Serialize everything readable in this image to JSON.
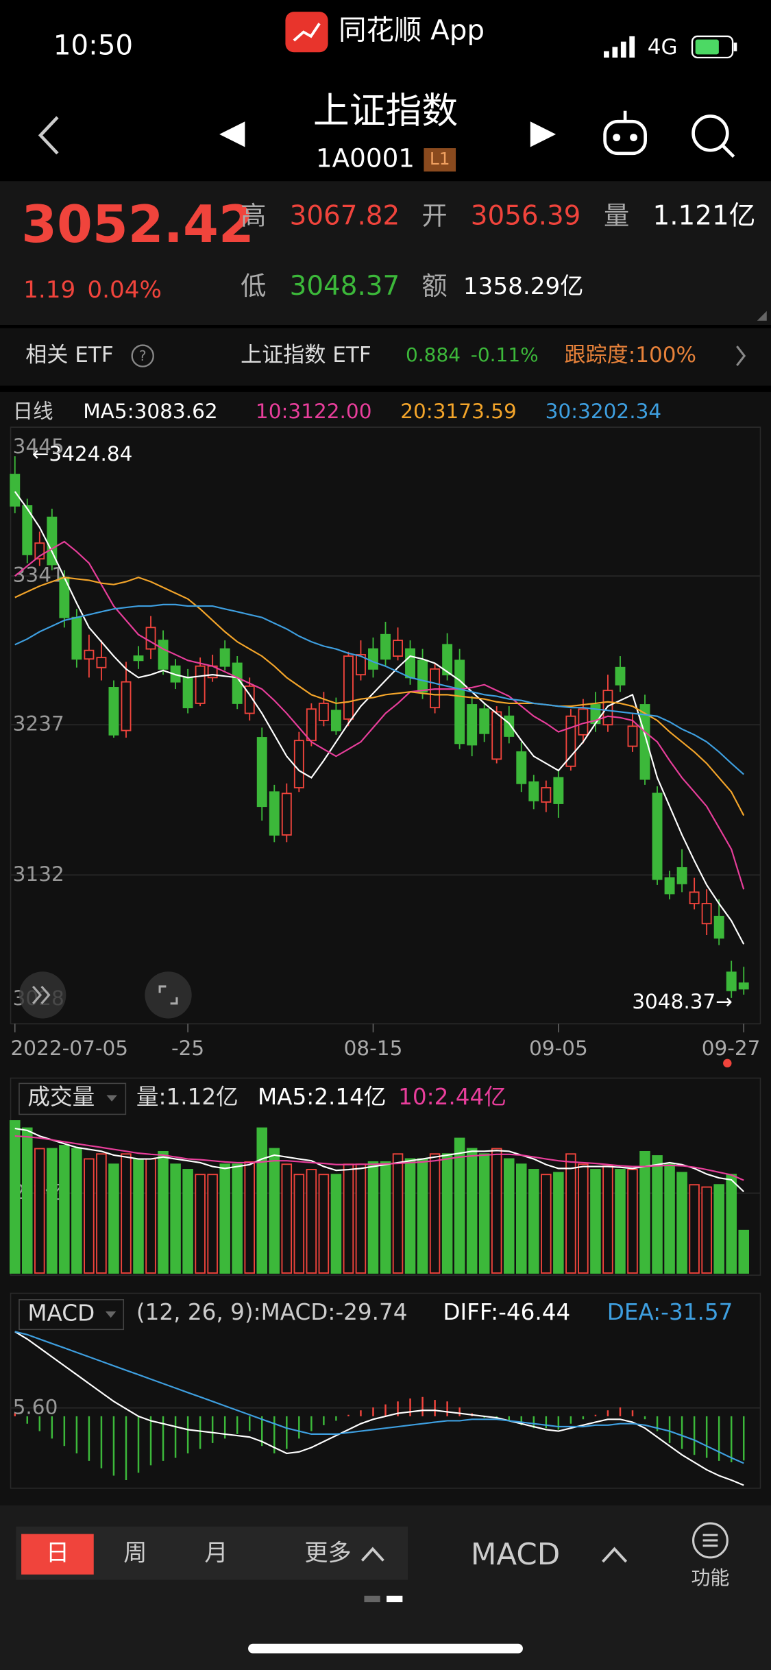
{
  "status_bar": {
    "time": "10:50",
    "app": "同花顺 App",
    "network": "4G"
  },
  "header": {
    "title": "上证指数",
    "code": "1A0001",
    "badge": "L1"
  },
  "quote": {
    "price": "3052.42",
    "change": "1.19",
    "change_pct": "0.04%",
    "high_label": "高",
    "high": "3067.82",
    "open_label": "开",
    "open": "3056.39",
    "volume_label": "量",
    "volume": "1.121亿",
    "low_label": "低",
    "low": "3048.37",
    "amount_label": "额",
    "amount": "1358.29亿"
  },
  "etf": {
    "label": "相关 ETF",
    "name": "上证指数 ETF",
    "price": "0.884",
    "change_pct": "-0.11%",
    "tracking": "跟踪度:100%"
  },
  "chart_data": [
    {
      "type": "candlestick",
      "legend_title": "日线",
      "categories": [
        "2022-07-05",
        null,
        null,
        null,
        null,
        null,
        null,
        null,
        null,
        null,
        null,
        null,
        null,
        null,
        "-25",
        null,
        null,
        null,
        null,
        null,
        null,
        null,
        null,
        null,
        null,
        null,
        null,
        null,
        null,
        "08-15",
        null,
        null,
        null,
        null,
        null,
        null,
        null,
        null,
        null,
        null,
        null,
        null,
        null,
        null,
        "09-05",
        null,
        null,
        null,
        null,
        null,
        null,
        null,
        null,
        null,
        null,
        null,
        null,
        null,
        null,
        "09-27"
      ],
      "open": [
        3412,
        3390,
        3353,
        3382,
        3340,
        3312,
        3283,
        3277,
        3263,
        3233,
        3285,
        3290,
        3296,
        3278,
        3270,
        3252,
        3270,
        3290,
        3280,
        3245,
        3228,
        3190,
        3160,
        3193,
        3226,
        3240,
        3247,
        3241,
        3272,
        3290,
        3300,
        3285,
        3290,
        3282,
        3249,
        3293,
        3282,
        3251,
        3248,
        3213,
        3243,
        3218,
        3197,
        3183,
        3200,
        3208,
        3230,
        3251,
        3237,
        3277,
        3222,
        3251,
        3189,
        3130,
        3137,
        3112,
        3098,
        3103,
        3064,
        3056.39
      ],
      "high": [
        3424.84,
        3395,
        3372,
        3388,
        3345,
        3318,
        3300,
        3296,
        3268,
        3281,
        3292,
        3313,
        3303,
        3283,
        3276,
        3284,
        3286,
        3296,
        3285,
        3270,
        3235,
        3195,
        3196,
        3232,
        3252,
        3260,
        3256,
        3288,
        3296,
        3298,
        3309,
        3305,
        3296,
        3290,
        3280,
        3301,
        3290,
        3257,
        3252,
        3250,
        3250,
        3225,
        3202,
        3198,
        3205,
        3248,
        3255,
        3260,
        3272,
        3285,
        3245,
        3258,
        3194,
        3135,
        3150,
        3130,
        3122,
        3115,
        3072,
        3067.82
      ],
      "low": [
        3385,
        3350,
        3348,
        3345,
        3305,
        3277,
        3270,
        3268,
        3228,
        3228,
        3276,
        3283,
        3272,
        3262,
        3245,
        3250,
        3267,
        3275,
        3248,
        3240,
        3170,
        3155,
        3155,
        3190,
        3222,
        3236,
        3230,
        3236,
        3268,
        3270,
        3278,
        3282,
        3265,
        3255,
        3245,
        3268,
        3220,
        3215,
        3225,
        3210,
        3224,
        3190,
        3178,
        3176,
        3172,
        3205,
        3224,
        3232,
        3232,
        3260,
        3218,
        3195,
        3125,
        3115,
        3120,
        3108,
        3090,
        3083,
        3046,
        3048.37
      ],
      "close": [
        3390,
        3356,
        3364,
        3349,
        3312,
        3283,
        3289,
        3284,
        3230,
        3267,
        3282,
        3305,
        3276,
        3267,
        3249,
        3278,
        3278,
        3278,
        3252,
        3264,
        3180,
        3160,
        3189,
        3226,
        3248,
        3252,
        3233,
        3285,
        3286,
        3276,
        3283,
        3296,
        3270,
        3260,
        3276,
        3272,
        3224,
        3223,
        3231,
        3246,
        3229,
        3196,
        3184,
        3193,
        3182,
        3243,
        3248,
        3238,
        3261,
        3265,
        3236,
        3199,
        3129,
        3119,
        3126,
        3120,
        3112,
        3088,
        3051.23,
        3052.42
      ],
      "up_color": "#f0443c",
      "down_color": "#3cb83a",
      "ylim": [
        3028,
        3445
      ],
      "yticks": [
        3445,
        3341,
        3237,
        3132,
        3028
      ],
      "grid": true,
      "annotations": [
        "←3424.84",
        "3048.37→"
      ],
      "series": [
        {
          "name": "MA5:3083.62",
          "color": "#ffffff",
          "values": [
            3400,
            3388,
            3375,
            3358,
            3340,
            3322,
            3305,
            3295,
            3285,
            3276,
            3270,
            3272,
            3275,
            3272,
            3270,
            3271,
            3272,
            3271,
            3270,
            3258,
            3245,
            3230,
            3215,
            3205,
            3200,
            3212,
            3225,
            3238,
            3250,
            3259,
            3268,
            3277,
            3285,
            3283,
            3280,
            3274,
            3268,
            3260,
            3252,
            3245,
            3238,
            3226,
            3215,
            3210,
            3205,
            3215,
            3225,
            3238,
            3250,
            3254,
            3258,
            3230,
            3200,
            3180,
            3160,
            3142,
            3125,
            3112,
            3100,
            3083.62
          ]
        },
        {
          "name": "10:3122.00",
          "color": "#e83e9b",
          "values": [
            3341,
            3348,
            3355,
            3360,
            3365,
            3358,
            3350,
            3335,
            3320,
            3310,
            3300,
            3295,
            3290,
            3286,
            3282,
            3280,
            3278,
            3274,
            3270,
            3266,
            3262,
            3254,
            3245,
            3235,
            3225,
            3220,
            3215,
            3220,
            3225,
            3235,
            3245,
            3252,
            3260,
            3261,
            3262,
            3262,
            3262,
            3263,
            3265,
            3261,
            3257,
            3250,
            3243,
            3238,
            3232,
            3235,
            3238,
            3240,
            3243,
            3242,
            3240,
            3232,
            3225,
            3212,
            3200,
            3190,
            3180,
            3165,
            3150,
            3122
          ]
        },
        {
          "name": "20:3173.59",
          "color": "#f4a52a",
          "values": [
            3326,
            3330,
            3334,
            3337,
            3340,
            3339,
            3338,
            3336,
            3335,
            3337,
            3340,
            3337,
            3333,
            3329,
            3325,
            3318,
            3310,
            3302,
            3295,
            3290,
            3285,
            3278,
            3270,
            3264,
            3258,
            3255,
            3252,
            3253,
            3255,
            3256,
            3258,
            3259,
            3260,
            3259,
            3258,
            3258,
            3257,
            3256,
            3255,
            3253,
            3252,
            3252,
            3252,
            3251,
            3250,
            3250,
            3251,
            3252,
            3253,
            3252,
            3250,
            3245,
            3240,
            3232,
            3225,
            3218,
            3210,
            3200,
            3190,
            3173.59
          ]
        },
        {
          "name": "30:3202.34",
          "color": "#3e9fe0",
          "values": [
            3293,
            3297,
            3302,
            3306,
            3310,
            3312,
            3314,
            3316,
            3318,
            3319,
            3320,
            3320,
            3321,
            3321,
            3320,
            3320,
            3320,
            3318,
            3316,
            3314,
            3312,
            3308,
            3304,
            3299,
            3295,
            3292,
            3290,
            3287,
            3285,
            3281,
            3278,
            3274,
            3270,
            3268,
            3266,
            3264,
            3262,
            3260,
            3258,
            3257,
            3255,
            3254,
            3252,
            3251,
            3250,
            3249,
            3249,
            3248,
            3247,
            3246,
            3245,
            3244,
            3243,
            3239,
            3234,
            3230,
            3225,
            3218,
            3210,
            3202.34
          ]
        }
      ]
    },
    {
      "type": "bar",
      "title": "成交量",
      "value_label": "量:1.12亿",
      "values": [
        4.0,
        3.81,
        3.27,
        3.27,
        3.35,
        3.27,
        3.0,
        3.13,
        2.86,
        3.13,
        3.0,
        3.0,
        3.19,
        2.86,
        2.72,
        2.59,
        2.59,
        2.86,
        2.86,
        2.92,
        3.81,
        3.27,
        2.86,
        2.59,
        2.72,
        2.59,
        2.59,
        2.86,
        2.86,
        2.92,
        2.92,
        3.13,
        3.0,
        3.0,
        3.13,
        3.13,
        3.54,
        3.27,
        3.13,
        3.27,
        3.0,
        2.86,
        2.72,
        2.59,
        2.64,
        3.13,
        2.86,
        2.72,
        2.81,
        2.72,
        2.72,
        3.19,
        3.08,
        2.86,
        2.64,
        2.32,
        2.26,
        2.32,
        2.59,
        1.12
      ],
      "ylim": [
        0,
        4.2
      ],
      "yticks": [
        {
          "value": 2.1,
          "label": "2.1亿"
        }
      ],
      "grid": true,
      "series": [
        {
          "name": "MA5:2.14亿",
          "color": "#ffffff",
          "values": [
            3.8,
            3.75,
            3.6,
            3.5,
            3.4,
            3.3,
            3.25,
            3.2,
            3.1,
            3.05,
            3.0,
            3.0,
            3.05,
            3.0,
            2.95,
            2.9,
            2.8,
            2.75,
            2.8,
            2.85,
            3.0,
            3.1,
            3.05,
            3.0,
            2.95,
            2.8,
            2.7,
            2.72,
            2.75,
            2.8,
            2.85,
            2.9,
            2.95,
            3.0,
            3.05,
            3.1,
            3.15,
            3.2,
            3.2,
            3.22,
            3.2,
            3.1,
            3.0,
            2.85,
            2.75,
            2.75,
            2.8,
            2.8,
            2.8,
            2.78,
            2.75,
            2.8,
            2.85,
            2.9,
            2.85,
            2.75,
            2.6,
            2.5,
            2.45,
            2.14
          ]
        },
        {
          "name": "10:2.44亿",
          "color": "#e83e9b",
          "values": [
            3.6,
            3.58,
            3.55,
            3.5,
            3.45,
            3.4,
            3.35,
            3.3,
            3.25,
            3.2,
            3.15,
            3.12,
            3.1,
            3.05,
            3.0,
            2.98,
            2.95,
            2.92,
            2.9,
            2.9,
            2.92,
            2.95,
            2.95,
            2.93,
            2.9,
            2.88,
            2.85,
            2.85,
            2.86,
            2.86,
            2.87,
            2.88,
            2.9,
            2.92,
            2.95,
            3.0,
            3.05,
            3.08,
            3.1,
            3.12,
            3.12,
            3.1,
            3.05,
            3.0,
            2.95,
            2.92,
            2.9,
            2.88,
            2.85,
            2.82,
            2.8,
            2.8,
            2.82,
            2.83,
            2.82,
            2.78,
            2.72,
            2.65,
            2.58,
            2.44
          ]
        }
      ]
    },
    {
      "type": "macd",
      "title": "MACD",
      "params": "(12, 26, 9):",
      "ylim": [
        -47,
        57
      ],
      "yticks": [
        {
          "value": 5.6,
          "label": "5.60"
        }
      ],
      "grid": true,
      "up_color": "#f0443c",
      "down_color": "#3cb83a",
      "histogram": {
        "name": "MACD:-29.74",
        "color": "#ffffff",
        "values": [
          2,
          -5,
          -10,
          -15,
          -20,
          -25,
          -30,
          -35,
          -40,
          -43,
          -38,
          -33,
          -30,
          -28,
          -25,
          -22,
          -18,
          -15,
          -12,
          -10,
          -20,
          -25,
          -22,
          -15,
          -10,
          -6,
          -3,
          1,
          4,
          6,
          8,
          10,
          12,
          13,
          11,
          10,
          6,
          2,
          -1,
          -2,
          -3,
          -6,
          -8,
          -8,
          -9,
          -5,
          -2,
          1,
          4,
          6,
          4,
          -2,
          -10,
          -18,
          -22,
          -26,
          -28,
          -30,
          -31,
          -29.74
        ]
      },
      "series": [
        {
          "name": "DIFF:-46.44",
          "color": "#ffffff",
          "values": [
            57,
            52,
            46,
            40,
            34,
            28,
            22,
            16,
            10,
            5,
            0,
            -3,
            -5,
            -7,
            -9,
            -10,
            -11,
            -12,
            -13,
            -14,
            -17,
            -21,
            -25,
            -24,
            -21,
            -17,
            -13,
            -9,
            -5,
            -2,
            0,
            2,
            3,
            4,
            4,
            3,
            2,
            1,
            0,
            -1,
            -3,
            -5,
            -7,
            -9,
            -10,
            -8,
            -6,
            -4,
            -2,
            -2,
            -4,
            -8,
            -14,
            -20,
            -26,
            -31,
            -36,
            -40,
            -43,
            -46.44
          ]
        },
        {
          "name": "DEA:-31.57",
          "color": "#3e9fe0",
          "values": [
            57,
            55,
            52,
            49,
            46,
            43,
            40,
            37,
            34,
            31,
            28,
            25,
            22,
            19,
            16,
            13,
            10,
            7,
            4,
            1,
            -2,
            -5,
            -8,
            -10,
            -12,
            -12,
            -12,
            -11,
            -10,
            -9,
            -8,
            -7,
            -6,
            -5,
            -4,
            -3,
            -3,
            -2,
            -2,
            -2,
            -3,
            -4,
            -5,
            -6,
            -7,
            -7,
            -7,
            -6,
            -6,
            -5,
            -5,
            -6,
            -8,
            -10,
            -13,
            -16,
            -20,
            -24,
            -28,
            -31.57
          ]
        }
      ]
    }
  ],
  "bottom_bar": {
    "tabs": [
      "日",
      "周",
      "月",
      "更多"
    ],
    "indicator": "MACD",
    "function": "功能"
  }
}
